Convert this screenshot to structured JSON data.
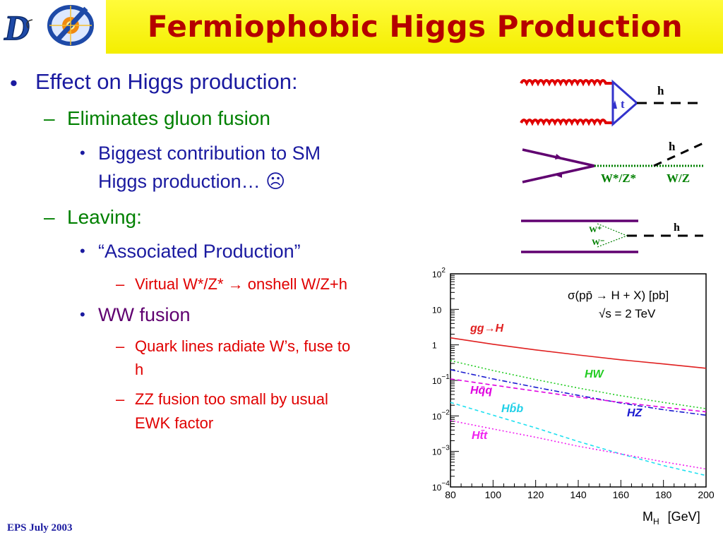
{
  "slide": {
    "title": "Fermiophobic Higgs Production",
    "footer": "EPS July 2003",
    "bullets": {
      "l1": "Effect on Higgs production:",
      "l2a": "Eliminates gluon fusion",
      "l3a_1": "Biggest contribution to SM",
      "l3a_2": "Higgs production… ☹",
      "l2b": "Leaving:",
      "l3b": "“Associated Production”",
      "l4b": "Virtual W*/Z* → onshell W/Z+h",
      "l3c": "WW fusion",
      "l4c_1": "Quark lines radiate W’s, fuse to",
      "l4c_2": "h",
      "l4d_1": "ZZ fusion too small by usual",
      "l4d_2": "EWK factor"
    },
    "markers": {
      "disc": "•",
      "dash": "–"
    }
  },
  "diagrams": {
    "gluon_fusion": {
      "higgs": "h",
      "quark": "t"
    },
    "associated": {
      "higgs": "h",
      "virtual": "W*/Z*",
      "onshell": "W/Z"
    },
    "ww_fusion": {
      "higgs": "h",
      "w_plus": "W⁺",
      "w_minus": "W⁻"
    }
  },
  "colors": {
    "title": "#b50000",
    "header": "#f4ee00",
    "blue": "#1a1aa0",
    "green": "#008000",
    "red": "#e00000",
    "purple": "#600070"
  },
  "chart_data": {
    "type": "line",
    "title": "σ(pp̄ → H + X)  [pb]",
    "subtitle": "√s = 2 TeV",
    "xlabel": "M",
    "xlabel_sub": "H",
    "xlabel_unit": "[GeV]",
    "xlim": [
      80,
      200
    ],
    "ylim": [
      0.0001,
      100
    ],
    "yscale": "log",
    "x_ticks": [
      "80",
      "100",
      "120",
      "140",
      "160",
      "180",
      "200"
    ],
    "y_ticks": [
      {
        "value": 100,
        "base": "10",
        "exp": "2"
      },
      {
        "value": 10,
        "base": "10",
        "exp": ""
      },
      {
        "value": 1,
        "base": "1",
        "exp": ""
      },
      {
        "value": 0.1,
        "base": "10",
        "exp": "−1"
      },
      {
        "value": 0.01,
        "base": "10",
        "exp": "−2"
      },
      {
        "value": 0.001,
        "base": "10",
        "exp": "−3"
      },
      {
        "value": 0.0001,
        "base": "10",
        "exp": "−4"
      }
    ],
    "x": [
      80,
      100,
      120,
      140,
      160,
      180,
      200
    ],
    "series": [
      {
        "name": "gg→H",
        "color": "#e02020",
        "dash": "",
        "values": [
          1.58,
          1.04,
          0.72,
          0.52,
          0.38,
          0.29,
          0.22
        ]
      },
      {
        "name": "HW",
        "color": "#22cc22",
        "dash": "2,3",
        "values": [
          0.36,
          0.19,
          0.105,
          0.061,
          0.037,
          0.024,
          0.016
        ]
      },
      {
        "name": "HZ",
        "color": "#1a1ad0",
        "dash": "7,3,2,3",
        "values": [
          0.2,
          0.11,
          0.064,
          0.038,
          0.023,
          0.015,
          0.0105
        ]
      },
      {
        "name": "Hq̄q",
        "color": "#e000e0",
        "dash": "6,4",
        "values": [
          0.11,
          0.074,
          0.05,
          0.034,
          0.024,
          0.0175,
          0.013
        ]
      },
      {
        "name": "Hb̄b",
        "color": "#20e0f0",
        "dash": "5,4",
        "values": [
          0.024,
          0.0105,
          0.0046,
          0.0019,
          0.00085,
          0.0004,
          0.00021
        ]
      },
      {
        "name": "Ht̄t",
        "color": "#f020f0",
        "dash": "2,3",
        "values": [
          0.0074,
          0.0043,
          0.0025,
          0.0014,
          0.00085,
          0.00051,
          0.00032
        ]
      }
    ]
  }
}
